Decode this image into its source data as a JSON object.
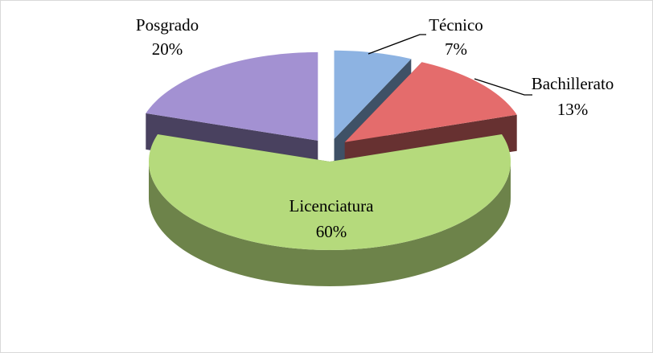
{
  "chart_data": {
    "type": "pie3d",
    "categories": [
      "Técnico",
      "Bachillerato",
      "Licenciatura",
      "Posgrado"
    ],
    "values": [
      7,
      13,
      60,
      20
    ],
    "value_labels": [
      "7%",
      "13%",
      "60%",
      "20%"
    ],
    "colors": [
      "#8db3e2",
      "#e46c6c",
      "#b5da7c",
      "#a391d2"
    ]
  }
}
